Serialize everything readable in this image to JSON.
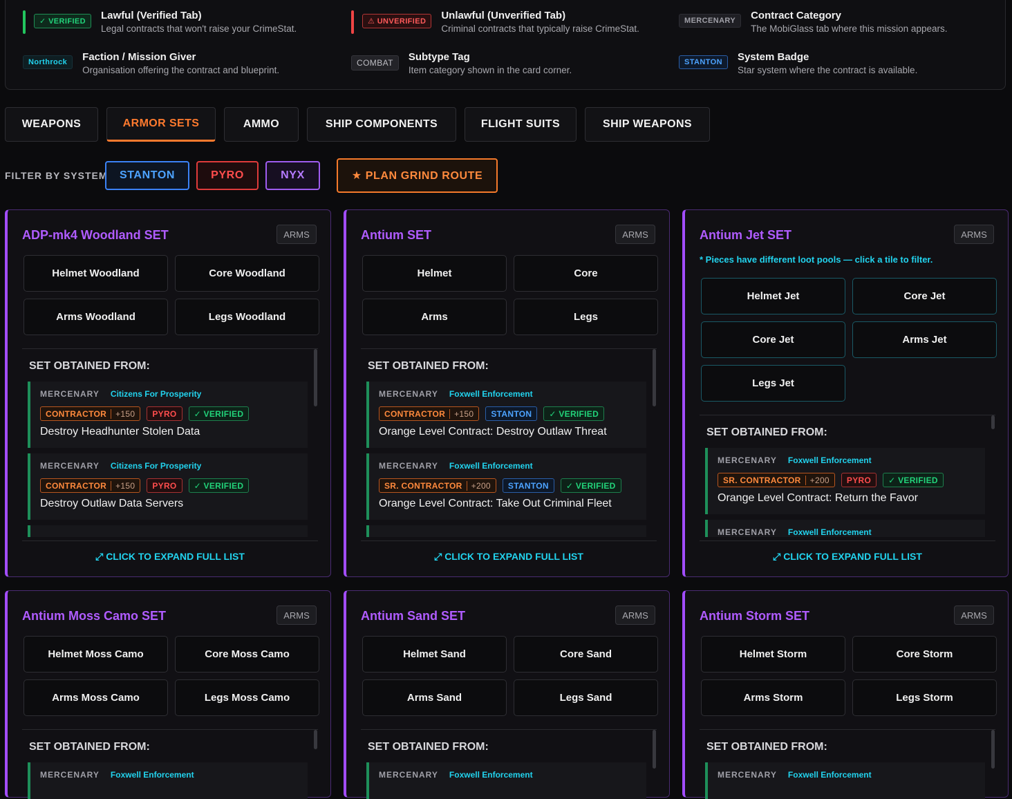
{
  "legend": {
    "verified": {
      "tag": "✓ VERIFIED",
      "title": "Lawful (Verified Tab)",
      "desc": "Legal contracts that won't raise your CrimeStat."
    },
    "unverified": {
      "tag": "⚠ UNVERIFIED",
      "title": "Unlawful (Unverified Tab)",
      "desc": "Criminal contracts that typically raise CrimeStat."
    },
    "category": {
      "tag": "MERCENARY",
      "title": "Contract Category",
      "desc": "The MobiGlass tab where this mission appears."
    },
    "faction": {
      "tag": "Northrock",
      "title": "Faction / Mission Giver",
      "desc": "Organisation offering the contract and blueprint."
    },
    "subtype": {
      "tag": "COMBAT",
      "title": "Subtype Tag",
      "desc": "Item category shown in the card corner."
    },
    "system": {
      "tag": "STANTON",
      "title": "System Badge",
      "desc": "Star system where the contract is available."
    }
  },
  "tabs": [
    "WEAPONS",
    "ARMOR SETS",
    "AMMO",
    "SHIP COMPONENTS",
    "FLIGHT SUITS",
    "SHIP WEAPONS"
  ],
  "active_tab": "ARMOR SETS",
  "filter": {
    "label": "FILTER BY SYSTEM:",
    "stanton": "STANTON",
    "pyro": "PYRO",
    "nyx": "NYX",
    "grind": "★ PLAN GRIND ROUTE"
  },
  "common": {
    "arms": "ARMS",
    "obtained": "SET OBTAINED FROM:",
    "expand": "⤢ CLICK TO EXPAND FULL LIST",
    "merc": "MERCENARY",
    "verified": "✓ VERIFIED",
    "contractor": "CONTRACTOR",
    "sr_contractor": "SR. CONTRACTOR",
    "rep150": "+150",
    "rep200": "+200",
    "pyro": "PYRO",
    "stanton": "STANTON"
  },
  "cards": [
    {
      "title": "ADP-mk4 Woodland SET",
      "pieces": [
        "Helmet Woodland",
        "Core Woodland",
        "Arms Woodland",
        "Legs Woodland"
      ],
      "faction": "Citizens For Prosperity",
      "contracts": [
        "Destroy Headhunter Stolen Data",
        "Destroy Outlaw Data Servers"
      ]
    },
    {
      "title": "Antium SET",
      "pieces": [
        "Helmet",
        "Core",
        "Arms",
        "Legs"
      ],
      "faction": "Foxwell Enforcement",
      "contracts": [
        "Orange Level Contract: Destroy Outlaw Threat",
        "Orange Level Contract: Take Out Criminal Fleet"
      ]
    },
    {
      "title": "Antium Jet SET",
      "note": "* Pieces have different loot pools — click a tile to filter.",
      "pieces": [
        "Helmet Jet",
        "Core Jet",
        "Core Jet",
        "Arms Jet",
        "Legs Jet"
      ],
      "faction": "Foxwell Enforcement",
      "contracts": [
        "Orange Level Contract: Return the Favor"
      ]
    },
    {
      "title": "Antium Moss Camo SET",
      "pieces": [
        "Helmet Moss Camo",
        "Core Moss Camo",
        "Arms Moss Camo",
        "Legs Moss Camo"
      ],
      "faction": "Foxwell Enforcement"
    },
    {
      "title": "Antium Sand SET",
      "pieces": [
        "Helmet Sand",
        "Core Sand",
        "Arms Sand",
        "Legs Sand"
      ],
      "faction": "Foxwell Enforcement"
    },
    {
      "title": "Antium Storm SET",
      "pieces": [
        "Helmet Storm",
        "Core Storm",
        "Arms Storm",
        "Legs Storm"
      ],
      "faction": "Foxwell Enforcement"
    }
  ]
}
